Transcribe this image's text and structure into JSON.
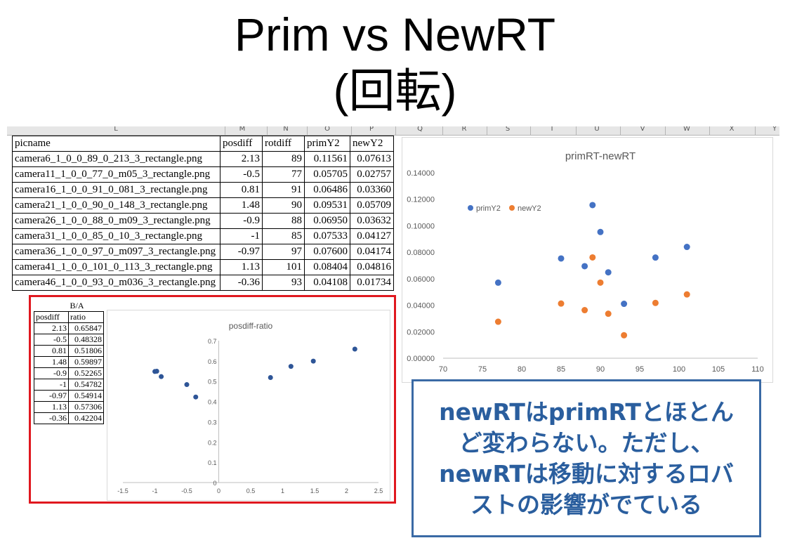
{
  "slide": {
    "title_line1": "Prim vs NewRT",
    "title_line2": "(回転)"
  },
  "sheet": {
    "column_letters": [
      "L",
      "M",
      "N",
      "O",
      "P",
      "Q",
      "R",
      "S",
      "T",
      "U",
      "V",
      "W",
      "X",
      "Y"
    ],
    "headers": [
      "picname",
      "posdiff",
      "rotdiff",
      "primY2",
      "newY2"
    ],
    "rows": [
      [
        "camera6_1_0_0_89_0_213_3_rectangle.png",
        "2.13",
        "89",
        "0.11561",
        "0.07613"
      ],
      [
        "camera11_1_0_0_77_0_m05_3_rectangle.png",
        "-0.5",
        "77",
        "0.05705",
        "0.02757"
      ],
      [
        "camera16_1_0_0_91_0_081_3_rectangle.png",
        "0.81",
        "91",
        "0.06486",
        "0.03360"
      ],
      [
        "camera21_1_0_0_90_0_148_3_rectangle.png",
        "1.48",
        "90",
        "0.09531",
        "0.05709"
      ],
      [
        "camera26_1_0_0_88_0_m09_3_rectangle.png",
        "-0.9",
        "88",
        "0.06950",
        "0.03632"
      ],
      [
        "camera31_1_0_0_85_0_10_3_rectangle.png",
        "-1",
        "85",
        "0.07533",
        "0.04127"
      ],
      [
        "camera36_1_0_0_97_0_m097_3_rectangle.png",
        "-0.97",
        "97",
        "0.07600",
        "0.04174"
      ],
      [
        "camera41_1_0_0_101_0_113_3_rectangle.png",
        "1.13",
        "101",
        "0.08404",
        "0.04816"
      ],
      [
        "camera46_1_0_0_93_0_m036_3_rectangle.png",
        "-0.36",
        "93",
        "0.04108",
        "0.01734"
      ]
    ]
  },
  "ratio_table": {
    "top_label": "B/A",
    "headers": [
      "posdiff",
      "ratio"
    ],
    "rows": [
      [
        "2.13",
        "0.65847"
      ],
      [
        "-0.5",
        "0.48328"
      ],
      [
        "0.81",
        "0.51806"
      ],
      [
        "1.48",
        "0.59897"
      ],
      [
        "-0.9",
        "0.52265"
      ],
      [
        "-1",
        "0.54782"
      ],
      [
        "-0.97",
        "0.54914"
      ],
      [
        "1.13",
        "0.57306"
      ],
      [
        "-0.36",
        "0.42204"
      ]
    ]
  },
  "note": {
    "text": "newRTはprimRTとほとんど変わらない。ただし、newRTは移動に対するロバストの影響がでている"
  },
  "chart_data": [
    {
      "type": "scatter",
      "title": "primRT-newRT",
      "xlabel": "",
      "ylabel": "",
      "xlim": [
        70,
        110
      ],
      "ylim": [
        0,
        0.14
      ],
      "xticks": [
        "70",
        "75",
        "80",
        "85",
        "90",
        "95",
        "100",
        "105",
        "110"
      ],
      "yticks": [
        "0.00000",
        "0.02000",
        "0.04000",
        "0.06000",
        "0.08000",
        "0.10000",
        "0.12000",
        "0.14000"
      ],
      "legend_position": "top-left",
      "grid": false,
      "series": [
        {
          "name": "primY2",
          "color": "#4472c4",
          "x": [
            89,
            77,
            91,
            90,
            88,
            85,
            97,
            101,
            93
          ],
          "y": [
            0.11561,
            0.05705,
            0.06486,
            0.09531,
            0.0695,
            0.07533,
            0.076,
            0.08404,
            0.04108
          ]
        },
        {
          "name": "newY2",
          "color": "#ed7d31",
          "x": [
            89,
            77,
            91,
            90,
            88,
            85,
            97,
            101,
            93
          ],
          "y": [
            0.07613,
            0.02757,
            0.0336,
            0.05709,
            0.03632,
            0.04127,
            0.04174,
            0.04816,
            0.01734
          ]
        }
      ]
    },
    {
      "type": "scatter",
      "title": "posdiff-ratio",
      "xlabel": "",
      "ylabel": "",
      "xlim": [
        -1.5,
        2.5
      ],
      "ylim": [
        0,
        0.7
      ],
      "xticks": [
        "-1.5",
        "-1",
        "-0.5",
        "0",
        "0.5",
        "1",
        "1.5",
        "2",
        "2.5"
      ],
      "yticks": [
        "0",
        "0.1",
        "0.2",
        "0.3",
        "0.4",
        "0.5",
        "0.6",
        "0.7"
      ],
      "grid": false,
      "series": [
        {
          "color": "#2e5597",
          "x": [
            2.13,
            -0.5,
            0.81,
            1.48,
            -0.9,
            -1,
            -0.97,
            1.13,
            -0.36
          ],
          "y": [
            0.65847,
            0.48328,
            0.51806,
            0.59897,
            0.52265,
            0.54782,
            0.54914,
            0.57306,
            0.42204
          ]
        }
      ]
    }
  ]
}
